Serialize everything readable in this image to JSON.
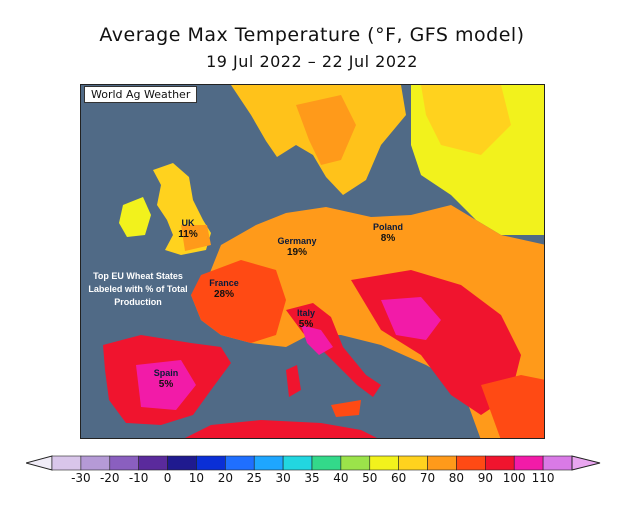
{
  "title": "Average Max Temperature (°F, GFS model)",
  "subtitle": "19 Jul 2022 – 22 Jul 2022",
  "credit": "World Ag Weather",
  "note": "Top EU Wheat States Labeled with % of Total Production",
  "states": [
    {
      "name": "UK",
      "share": "11%"
    },
    {
      "name": "Germany",
      "share": "19%"
    },
    {
      "name": "Poland",
      "share": "8%"
    },
    {
      "name": "France",
      "share": "28%"
    },
    {
      "name": "Italy",
      "share": "5%"
    },
    {
      "name": "Spain",
      "share": "5%"
    }
  ],
  "colorbar": {
    "ticks": [
      "-30",
      "-20",
      "-10",
      "0",
      "10",
      "20",
      "25",
      "30",
      "35",
      "40",
      "50",
      "60",
      "70",
      "80",
      "90",
      "100",
      "110"
    ],
    "colors": [
      "#d9c6ea",
      "#b59ad6",
      "#8a5fbf",
      "#5a2a9c",
      "#1f1a8f",
      "#0a2fd6",
      "#1f6fff",
      "#1ea6ff",
      "#22d6e0",
      "#33d98a",
      "#9be34a",
      "#f2f21c",
      "#ffd21e",
      "#ff9a1a",
      "#ff4a14",
      "#f0142e",
      "#f21ba8",
      "#d97ae6"
    ],
    "low_arrow": "#f0ecf7",
    "high_arrow": "#e9a6f0"
  },
  "colors": {
    "sea": "#506a86",
    "border": "#222222"
  }
}
